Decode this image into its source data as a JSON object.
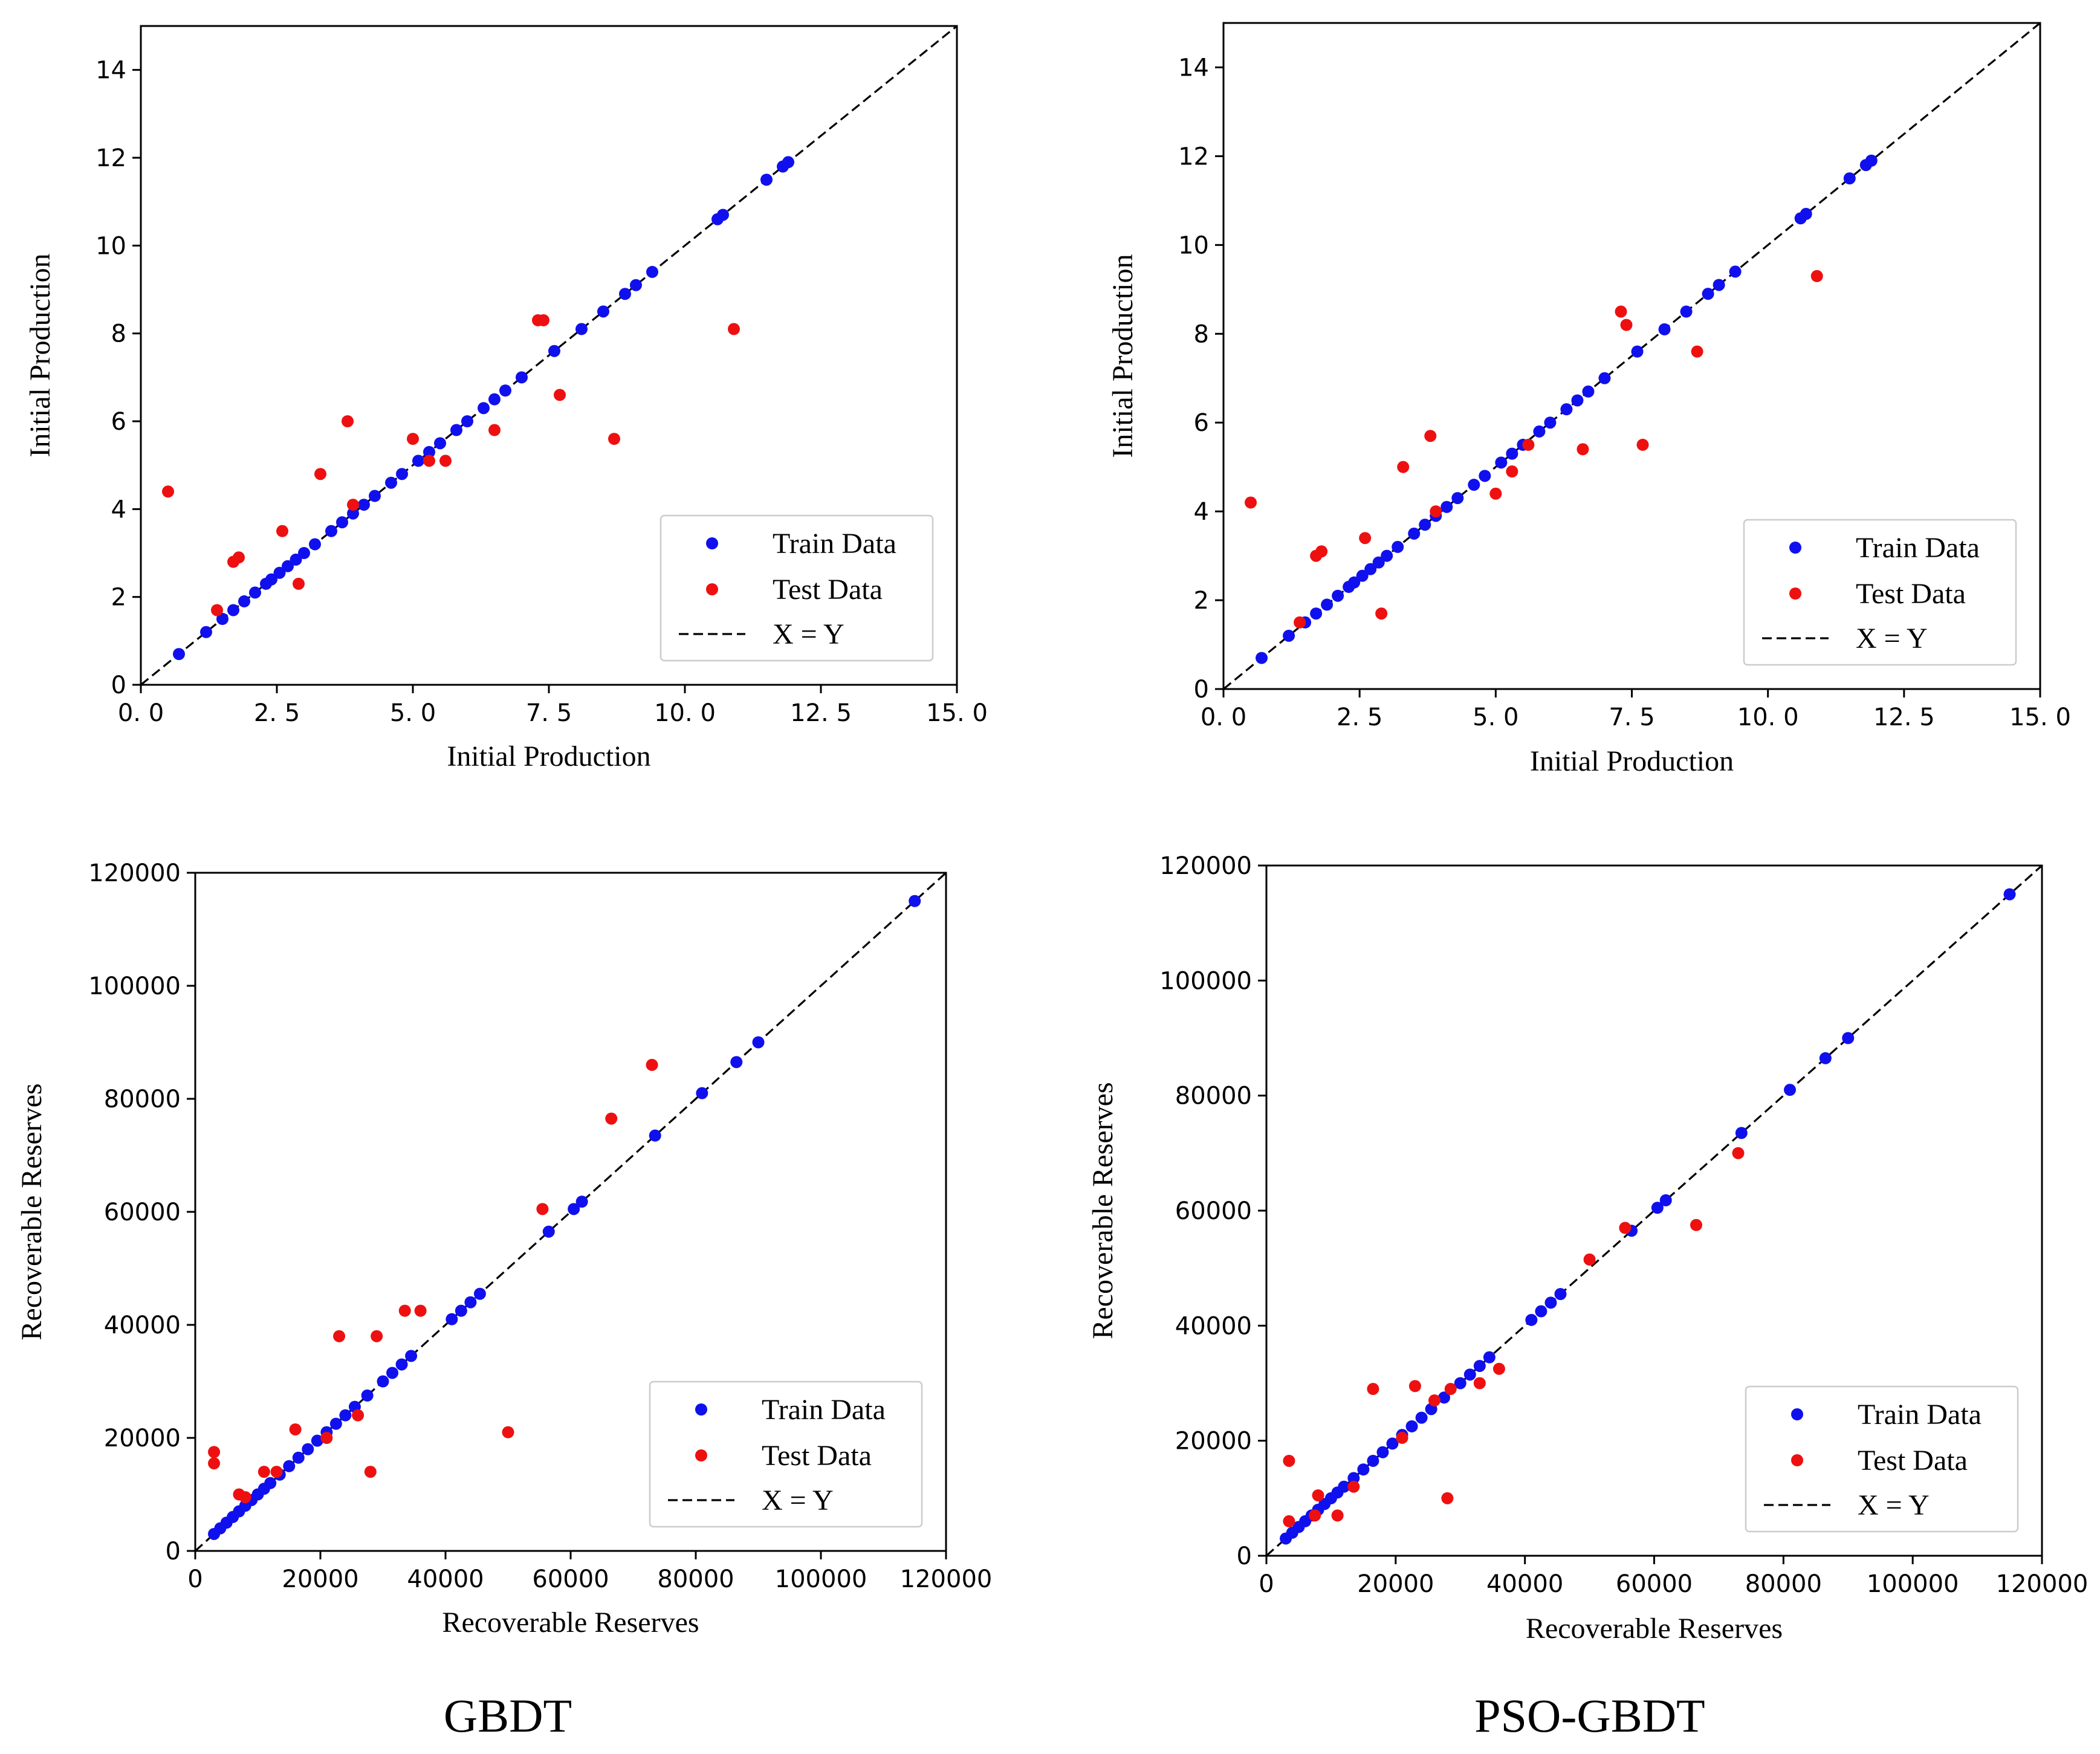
{
  "colors": {
    "train": "#1010ee",
    "test": "#ee1010",
    "line": "#000000"
  },
  "captions": {
    "left": "GBDT",
    "right": "PSO-GBDT"
  },
  "chart_data": [
    {
      "type": "scatter",
      "model": "GBDT",
      "xlabel": "Initial Production",
      "ylabel": "Initial Production",
      "xlim": [
        0,
        15
      ],
      "ylim": [
        0,
        15
      ],
      "xticks": [
        0,
        2.5,
        5,
        7.5,
        10,
        12.5,
        15
      ],
      "xtick_labels": [
        "0. 0",
        "2. 5",
        "5. 0",
        "7. 5",
        "10. 0",
        "12. 5",
        "15. 0"
      ],
      "yticks": [
        0,
        2,
        4,
        6,
        8,
        10,
        12,
        14
      ],
      "ytick_labels": [
        "0",
        "2",
        "4",
        "6",
        "8",
        "10",
        "12",
        "14"
      ],
      "legend": {
        "train": "Train Data",
        "test": "Test Data",
        "line": "X = Y",
        "position": "bottom-right"
      },
      "train": {
        "x": [
          0.7,
          1.2,
          1.5,
          1.7,
          1.9,
          2.1,
          2.3,
          2.4,
          2.55,
          2.7,
          2.85,
          3.0,
          3.2,
          3.5,
          3.7,
          3.9,
          4.1,
          4.3,
          4.6,
          4.8,
          5.1,
          5.3,
          5.5,
          5.8,
          6.0,
          6.3,
          6.5,
          6.7,
          7.0,
          7.6,
          8.1,
          8.5,
          8.9,
          9.1,
          9.4,
          10.6,
          10.7,
          11.5,
          11.8,
          11.9
        ],
        "y": [
          0.7,
          1.2,
          1.5,
          1.7,
          1.9,
          2.1,
          2.3,
          2.4,
          2.55,
          2.7,
          2.85,
          3.0,
          3.2,
          3.5,
          3.7,
          3.9,
          4.1,
          4.3,
          4.6,
          4.8,
          5.1,
          5.3,
          5.5,
          5.8,
          6.0,
          6.3,
          6.5,
          6.7,
          7.0,
          7.6,
          8.1,
          8.5,
          8.9,
          9.1,
          9.4,
          10.6,
          10.7,
          11.5,
          11.8,
          11.9
        ]
      },
      "test": {
        "x": [
          0.5,
          1.4,
          1.7,
          1.8,
          2.6,
          2.9,
          3.3,
          3.8,
          3.9,
          5.0,
          5.3,
          5.6,
          6.5,
          7.3,
          7.4,
          7.7,
          8.7,
          10.9
        ],
        "y": [
          4.4,
          1.7,
          2.8,
          2.9,
          3.5,
          2.3,
          4.8,
          6.0,
          4.1,
          5.6,
          5.1,
          5.1,
          5.8,
          8.3,
          8.3,
          6.6,
          5.6,
          8.1
        ]
      }
    },
    {
      "type": "scatter",
      "model": "PSO-GBDT",
      "xlabel": "Initial Production",
      "ylabel": "Initial Production",
      "xlim": [
        0,
        15
      ],
      "ylim": [
        0,
        15
      ],
      "xticks": [
        0,
        2.5,
        5,
        7.5,
        10,
        12.5,
        15
      ],
      "xtick_labels": [
        "0. 0",
        "2. 5",
        "5. 0",
        "7. 5",
        "10. 0",
        "12. 5",
        "15. 0"
      ],
      "yticks": [
        0,
        2,
        4,
        6,
        8,
        10,
        12,
        14
      ],
      "ytick_labels": [
        "0",
        "2",
        "4",
        "6",
        "8",
        "10",
        "12",
        "14"
      ],
      "legend": {
        "train": "Train Data",
        "test": "Test Data",
        "line": "X = Y",
        "position": "bottom-right"
      },
      "train": {
        "x": [
          0.7,
          1.2,
          1.5,
          1.7,
          1.9,
          2.1,
          2.3,
          2.4,
          2.55,
          2.7,
          2.85,
          3.0,
          3.2,
          3.5,
          3.7,
          3.9,
          4.1,
          4.3,
          4.6,
          4.8,
          5.1,
          5.3,
          5.5,
          5.8,
          6.0,
          6.3,
          6.5,
          6.7,
          7.0,
          7.6,
          8.1,
          8.5,
          8.9,
          9.1,
          9.4,
          10.6,
          10.7,
          11.5,
          11.8,
          11.9
        ],
        "y": [
          0.7,
          1.2,
          1.5,
          1.7,
          1.9,
          2.1,
          2.3,
          2.4,
          2.55,
          2.7,
          2.85,
          3.0,
          3.2,
          3.5,
          3.7,
          3.9,
          4.1,
          4.3,
          4.6,
          4.8,
          5.1,
          5.3,
          5.5,
          5.8,
          6.0,
          6.3,
          6.5,
          6.7,
          7.0,
          7.6,
          8.1,
          8.5,
          8.9,
          9.1,
          9.4,
          10.6,
          10.7,
          11.5,
          11.8,
          11.9
        ]
      },
      "test": {
        "x": [
          0.5,
          1.4,
          1.7,
          1.8,
          2.6,
          2.9,
          3.3,
          3.8,
          3.9,
          5.0,
          5.3,
          5.6,
          6.6,
          7.3,
          7.4,
          7.7,
          8.7,
          10.9
        ],
        "y": [
          4.2,
          1.5,
          3.0,
          3.1,
          3.4,
          1.7,
          5.0,
          5.7,
          4.0,
          4.4,
          4.9,
          5.5,
          5.4,
          8.5,
          8.2,
          5.5,
          7.6,
          9.3
        ]
      }
    },
    {
      "type": "scatter",
      "model": "GBDT",
      "xlabel": "Recoverable Reserves",
      "ylabel": "Recoverable Reserves",
      "xlim": [
        0,
        120000
      ],
      "ylim": [
        0,
        120000
      ],
      "xticks": [
        0,
        20000,
        40000,
        60000,
        80000,
        100000,
        120000
      ],
      "xtick_labels": [
        "0",
        "20000",
        "40000",
        "60000",
        "80000",
        "100000",
        "120000"
      ],
      "yticks": [
        0,
        20000,
        40000,
        60000,
        80000,
        100000,
        120000
      ],
      "ytick_labels": [
        "0",
        "20000",
        "40000",
        "60000",
        "80000",
        "100000",
        "120000"
      ],
      "legend": {
        "train": "Train Data",
        "test": "Test Data",
        "line": "X = Y",
        "position": "bottom-right"
      },
      "train": {
        "x": [
          3000,
          4000,
          5000,
          6000,
          7000,
          8000,
          9000,
          10000,
          11000,
          12000,
          13500,
          15000,
          16500,
          18000,
          19500,
          21000,
          22500,
          24000,
          25500,
          27500,
          30000,
          31500,
          33000,
          34500,
          41000,
          42500,
          44000,
          45500,
          56500,
          60500,
          61800,
          73500,
          81000,
          86500,
          90000,
          115000
        ],
        "y": [
          3000,
          4000,
          5000,
          6000,
          7000,
          8000,
          9000,
          10000,
          11000,
          12000,
          13500,
          15000,
          16500,
          18000,
          19500,
          21000,
          22500,
          24000,
          25500,
          27500,
          30000,
          31500,
          33000,
          34500,
          41000,
          42500,
          44000,
          45500,
          56500,
          60500,
          61800,
          73500,
          81000,
          86500,
          90000,
          115000
        ]
      },
      "test": {
        "x": [
          3000,
          3000,
          7000,
          8000,
          11000,
          13000,
          16000,
          21000,
          23000,
          26000,
          28000,
          29000,
          33500,
          36000,
          50000,
          55500,
          66500,
          73000
        ],
        "y": [
          17500,
          15500,
          10000,
          9500,
          14000,
          14000,
          21500,
          20000,
          38000,
          24000,
          14000,
          38000,
          42500,
          42500,
          21000,
          60500,
          76500,
          86000
        ]
      }
    },
    {
      "type": "scatter",
      "model": "PSO-GBDT",
      "xlabel": "Recoverable Reserves",
      "ylabel": "Recoverable Reserves",
      "xlim": [
        0,
        120000
      ],
      "ylim": [
        0,
        120000
      ],
      "xticks": [
        0,
        20000,
        40000,
        60000,
        80000,
        100000,
        120000
      ],
      "xtick_labels": [
        "0",
        "20000",
        "40000",
        "60000",
        "80000",
        "100000",
        "120000"
      ],
      "yticks": [
        0,
        20000,
        40000,
        60000,
        80000,
        100000,
        120000
      ],
      "ytick_labels": [
        "0",
        "20000",
        "40000",
        "60000",
        "80000",
        "100000",
        "120000"
      ],
      "legend": {
        "train": "Train Data",
        "test": "Test Data",
        "line": "X = Y",
        "position": "bottom-right"
      },
      "train": {
        "x": [
          3000,
          4000,
          5000,
          6000,
          7000,
          8000,
          9000,
          10000,
          11000,
          12000,
          13500,
          15000,
          16500,
          18000,
          19500,
          21000,
          22500,
          24000,
          25500,
          27500,
          30000,
          31500,
          33000,
          34500,
          41000,
          42500,
          44000,
          45500,
          56500,
          60500,
          61800,
          73500,
          81000,
          86500,
          90000,
          115000
        ],
        "y": [
          3000,
          4000,
          5000,
          6000,
          7000,
          8000,
          9000,
          10000,
          11000,
          12000,
          13500,
          15000,
          16500,
          18000,
          19500,
          21000,
          22500,
          24000,
          25500,
          27500,
          30000,
          31500,
          33000,
          34500,
          41000,
          42500,
          44000,
          45500,
          56500,
          60500,
          61800,
          73500,
          81000,
          86500,
          90000,
          115000
        ]
      },
      "test": {
        "x": [
          3500,
          3500,
          7500,
          8000,
          11000,
          13500,
          16500,
          21000,
          23000,
          26000,
          28000,
          28500,
          33000,
          36000,
          50000,
          55500,
          66500,
          73000
        ],
        "y": [
          16500,
          6000,
          7000,
          10500,
          7000,
          12000,
          29000,
          20500,
          29500,
          27000,
          10000,
          29000,
          30000,
          32500,
          51500,
          57000,
          57500,
          70000
        ]
      }
    }
  ]
}
